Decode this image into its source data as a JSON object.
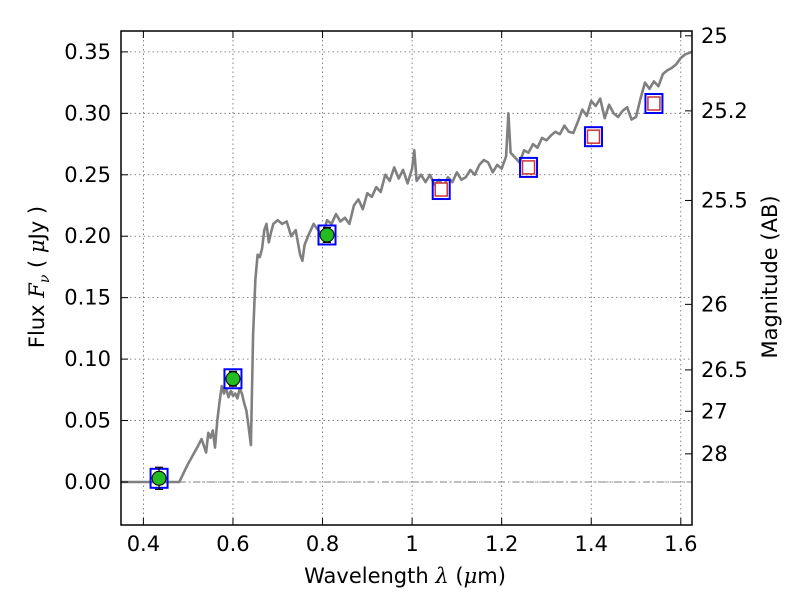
{
  "chart_data": {
    "type": "scatter",
    "xlabel": {
      "prefix": "Wavelength",
      "symbol": "λ",
      "unit_open": "(",
      "unit_mu": "μ",
      "unit_rest": "m)"
    },
    "ylabel": {
      "prefix": "Flux",
      "symbol": "F",
      "subscript": "ν",
      "unit_open": "(",
      "unit_mu": "μ",
      "unit_rest": "Jy )"
    },
    "y2label": "Magnitude (AB)",
    "xlim": [
      0.35,
      1.625
    ],
    "ylim": [
      -0.035,
      0.367
    ],
    "grid": true,
    "x_ticks": [
      {
        "value": 0.4,
        "label": "0.4"
      },
      {
        "value": 0.6,
        "label": "0.6"
      },
      {
        "value": 0.8,
        "label": "0.8"
      },
      {
        "value": 1.0,
        "label": "1"
      },
      {
        "value": 1.2,
        "label": "1.2"
      },
      {
        "value": 1.4,
        "label": "1.4"
      },
      {
        "value": 1.6,
        "label": "1.6"
      }
    ],
    "y_ticks": [
      {
        "value": 0.0,
        "label": "0.00"
      },
      {
        "value": 0.05,
        "label": "0.05"
      },
      {
        "value": 0.1,
        "label": "0.10"
      },
      {
        "value": 0.15,
        "label": "0.15"
      },
      {
        "value": 0.2,
        "label": "0.20"
      },
      {
        "value": 0.25,
        "label": "0.25"
      },
      {
        "value": 0.3,
        "label": "0.30"
      },
      {
        "value": 0.35,
        "label": "0.35"
      }
    ],
    "y2_ticks": [
      {
        "mag": 25,
        "label": "25"
      },
      {
        "mag": 25.2,
        "label": "25.2"
      },
      {
        "mag": 25.5,
        "label": "25.5"
      },
      {
        "mag": 26,
        "label": "26"
      },
      {
        "mag": 26.5,
        "label": "26.5"
      },
      {
        "mag": 27,
        "label": "27"
      },
      {
        "mag": 28,
        "label": "28"
      }
    ],
    "series": [
      {
        "kind": "model_spectrum",
        "color": "#808080",
        "x": [
          0.35,
          0.46,
          0.48,
          0.5,
          0.52,
          0.53,
          0.54,
          0.545,
          0.55,
          0.555,
          0.56,
          0.565,
          0.57,
          0.575,
          0.58,
          0.585,
          0.59,
          0.595,
          0.6,
          0.605,
          0.61,
          0.615,
          0.62,
          0.625,
          0.63,
          0.635,
          0.64,
          0.645,
          0.65,
          0.655,
          0.66,
          0.665,
          0.67,
          0.675,
          0.68,
          0.685,
          0.69,
          0.7,
          0.71,
          0.72,
          0.73,
          0.74,
          0.75,
          0.755,
          0.76,
          0.77,
          0.78,
          0.79,
          0.8,
          0.81,
          0.82,
          0.83,
          0.84,
          0.85,
          0.86,
          0.87,
          0.88,
          0.89,
          0.9,
          0.91,
          0.92,
          0.93,
          0.94,
          0.95,
          0.96,
          0.97,
          0.98,
          0.99,
          1.0,
          1.005,
          1.01,
          1.02,
          1.03,
          1.04,
          1.05,
          1.06,
          1.07,
          1.08,
          1.09,
          1.1,
          1.11,
          1.12,
          1.13,
          1.14,
          1.15,
          1.16,
          1.17,
          1.18,
          1.19,
          1.2,
          1.21,
          1.215,
          1.22,
          1.23,
          1.24,
          1.25,
          1.26,
          1.27,
          1.28,
          1.29,
          1.3,
          1.31,
          1.32,
          1.33,
          1.34,
          1.35,
          1.36,
          1.37,
          1.38,
          1.39,
          1.4,
          1.41,
          1.42,
          1.43,
          1.44,
          1.45,
          1.46,
          1.47,
          1.48,
          1.49,
          1.5,
          1.51,
          1.52,
          1.53,
          1.54,
          1.55,
          1.56,
          1.57,
          1.58,
          1.59,
          1.6,
          1.61,
          1.625
        ],
        "y": [
          0.0,
          0.0,
          0.0,
          0.015,
          0.028,
          0.035,
          0.024,
          0.04,
          0.036,
          0.042,
          0.028,
          0.05,
          0.065,
          0.078,
          0.072,
          0.076,
          0.069,
          0.074,
          0.07,
          0.072,
          0.068,
          0.076,
          0.072,
          0.064,
          0.058,
          0.045,
          0.03,
          0.12,
          0.165,
          0.185,
          0.183,
          0.19,
          0.205,
          0.21,
          0.195,
          0.203,
          0.21,
          0.213,
          0.21,
          0.212,
          0.2,
          0.205,
          0.185,
          0.18,
          0.193,
          0.202,
          0.21,
          0.205,
          0.2,
          0.213,
          0.21,
          0.218,
          0.212,
          0.215,
          0.21,
          0.225,
          0.23,
          0.222,
          0.235,
          0.232,
          0.24,
          0.236,
          0.25,
          0.245,
          0.256,
          0.247,
          0.254,
          0.243,
          0.255,
          0.27,
          0.245,
          0.25,
          0.244,
          0.25,
          0.242,
          0.246,
          0.24,
          0.248,
          0.244,
          0.252,
          0.246,
          0.248,
          0.254,
          0.25,
          0.258,
          0.262,
          0.26,
          0.252,
          0.258,
          0.255,
          0.265,
          0.3,
          0.268,
          0.264,
          0.26,
          0.27,
          0.268,
          0.275,
          0.272,
          0.28,
          0.278,
          0.282,
          0.285,
          0.283,
          0.29,
          0.285,
          0.284,
          0.293,
          0.303,
          0.298,
          0.31,
          0.306,
          0.312,
          0.296,
          0.307,
          0.3,
          0.297,
          0.302,
          0.305,
          0.295,
          0.297,
          0.312,
          0.325,
          0.32,
          0.326,
          0.322,
          0.332,
          0.335,
          0.337,
          0.34,
          0.345,
          0.348,
          0.35
        ],
        "dash_line": {
          "y": 0.0,
          "color": "#808080"
        }
      },
      {
        "kind": "photometry_detected",
        "marker": "green-circle",
        "color": "#22bb22",
        "x": [
          0.435,
          0.6,
          0.81
        ],
        "y": [
          0.003,
          0.084,
          0.201
        ],
        "yerr": [
          0.009,
          0.006,
          0.006
        ],
        "box_color": "#0000ff"
      },
      {
        "kind": "photometry_model",
        "marker": "open-square",
        "color": "#cc3333",
        "x": [
          1.065,
          1.26,
          1.405,
          1.54
        ],
        "y": [
          0.238,
          0.256,
          0.281,
          0.308
        ],
        "box_color": "#0000ff"
      }
    ]
  }
}
